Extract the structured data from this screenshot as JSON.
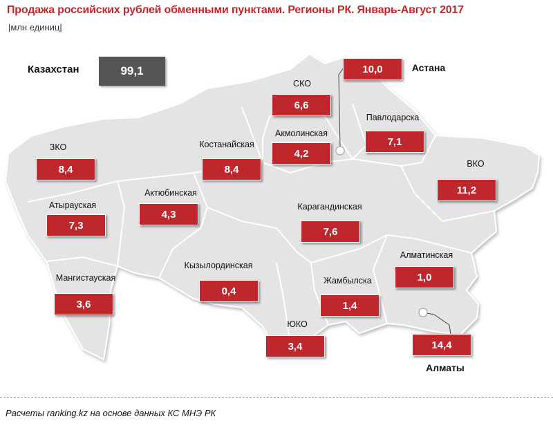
{
  "title": "Продажа российских рублей обменными пунктами. Регионы РК.  Январь-Август 2017",
  "subtitle": "|млн единиц|",
  "total": {
    "label": "Казахстан",
    "value": "99,1"
  },
  "colors": {
    "accent": "#c0272d",
    "total_box": "#555555",
    "land": "#e4e4e4",
    "border": "#ffffff"
  },
  "regions": [
    {
      "id": "zko",
      "name": "ЗКО",
      "value": "8,4"
    },
    {
      "id": "atyrau",
      "name": "Атырауская",
      "value": "7,3"
    },
    {
      "id": "mangistau",
      "name": "Мангистауская",
      "value": "3,6"
    },
    {
      "id": "aktobe",
      "name": "Актюбинская",
      "value": "4,3"
    },
    {
      "id": "kostanay",
      "name": "Костанайская",
      "value": "8,4"
    },
    {
      "id": "sko",
      "name": "СКО",
      "value": "6,6"
    },
    {
      "id": "akmola",
      "name": "Акмолинская",
      "value": "4,2"
    },
    {
      "id": "astana",
      "name": "Астана",
      "value": "10,0"
    },
    {
      "id": "pavlodar",
      "name": "Павлодарска",
      "value": "7,1"
    },
    {
      "id": "vko",
      "name": "ВКО",
      "value": "11,2"
    },
    {
      "id": "karaganda",
      "name": "Карагандинская",
      "value": "7,6"
    },
    {
      "id": "kyzylorda",
      "name": "Кызылординская",
      "value": "0,4"
    },
    {
      "id": "almaty_obl",
      "name": "Алматинская",
      "value": "1,0"
    },
    {
      "id": "zhambyl",
      "name": "Жамбылска",
      "value": "1,4"
    },
    {
      "id": "uko",
      "name": "ЮКО",
      "value": "3,4"
    },
    {
      "id": "almaty",
      "name": "Алматы",
      "value": "14,4"
    }
  ],
  "footer": "Расчеты ranking.kz  на основе данных  КС МНЭ РК"
}
